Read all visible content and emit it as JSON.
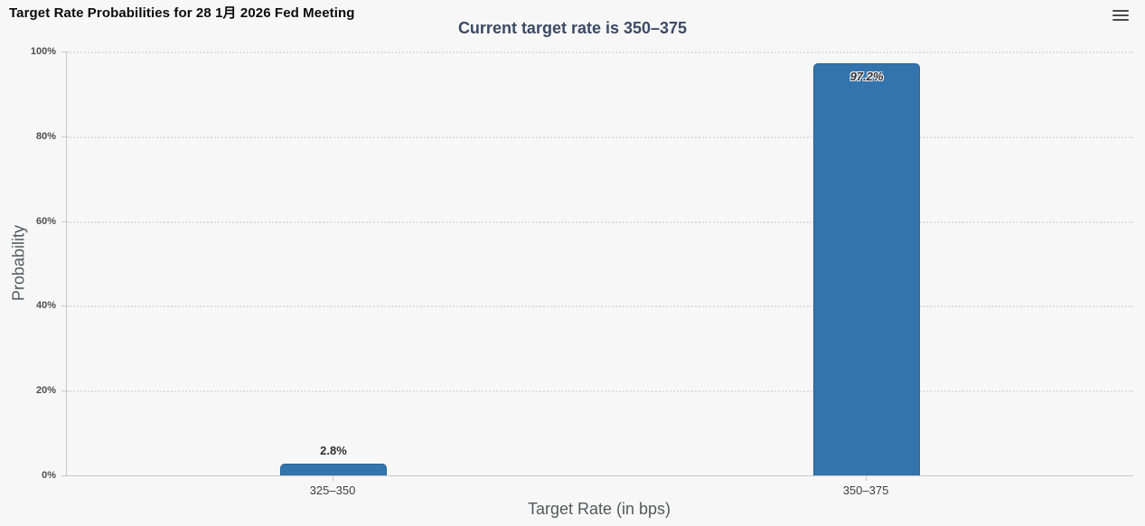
{
  "header": {
    "title": "Target Rate Probabilities for 28 1月 2026 Fed Meeting",
    "menu_icon": "hamburger-menu-icon"
  },
  "chart_data": {
    "type": "bar",
    "title": "Target Rate Probabilities for 28 1月 2026 Fed Meeting",
    "subtitle": "Current target rate is 350–375",
    "categories": [
      "325–350",
      "350–375"
    ],
    "values": [
      2.8,
      97.2
    ],
    "value_labels": [
      "2.8%",
      "97.2%"
    ],
    "xlabel": "Target Rate (in bps)",
    "ylabel": "Probability",
    "ylim": [
      0,
      100
    ],
    "yticks": [
      0,
      20,
      40,
      60,
      80,
      100
    ],
    "ytick_labels": [
      "0%",
      "20%",
      "40%",
      "60%",
      "80%",
      "100%"
    ],
    "grid": "horizontal dotted",
    "legend": "none",
    "bar_color": "#3374ad",
    "bar_border_color": "#2d6392"
  },
  "colors": {
    "background": "#f7f7f7",
    "title_text": "#0b0b0b",
    "subtitle_text": "#3c4a64",
    "axis_line": "#c9c9c9",
    "gridline": "#dedede",
    "tick_label": "#4f4f4f",
    "axis_title": "#55585c",
    "data_label_outside": "#2f2f2f",
    "data_label_inside": "#30333d"
  }
}
